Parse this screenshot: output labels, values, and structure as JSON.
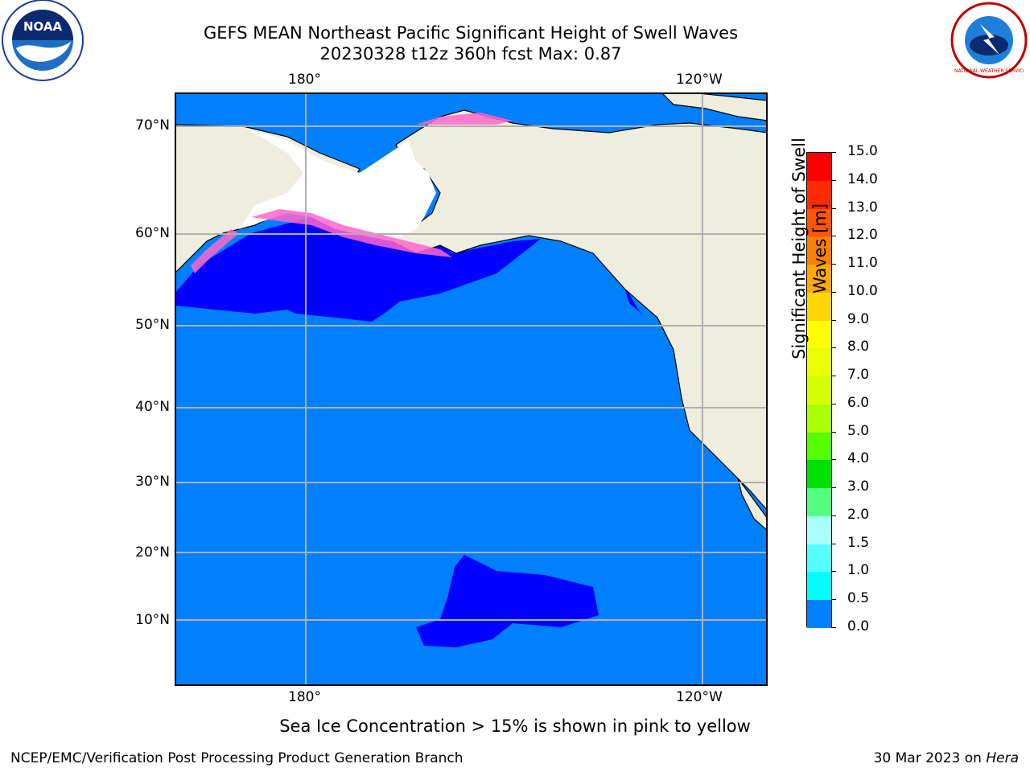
{
  "header": {
    "title_line1": "GEFS MEAN Northeast Pacific Significant Height of Swell Waves",
    "title_line2": "20230328 t12z 360h fcst   Max: 0.87"
  },
  "logos": {
    "left_text": "NOAA",
    "right_text": "NATIONAL WEATHER SERVICE"
  },
  "map": {
    "lon_labels": [
      "180°",
      "120°W"
    ],
    "lat_labels": [
      "70°N",
      "60°N",
      "50°N",
      "40°N",
      "30°N",
      "20°N",
      "10°N"
    ],
    "colors": {
      "land": "#eeedde",
      "ocean": "#0080ff",
      "low_swell": "#0000ff",
      "ice_free": "#ffffff",
      "grid": "#b0b0b0"
    }
  },
  "colorbar": {
    "label": "Significant Height of Swell Waves [m]",
    "ticks": [
      "15.0",
      "14.0",
      "13.0",
      "12.0",
      "11.0",
      "10.0",
      "9.0",
      "8.0",
      "7.0",
      "6.0",
      "5.0",
      "4.0",
      "3.0",
      "2.0",
      "1.5",
      "1.0",
      "0.5",
      "0.0"
    ],
    "colors": [
      "#ff0000",
      "#ff2a00",
      "#ff5500",
      "#ff8000",
      "#ffaa00",
      "#ffd500",
      "#ffff00",
      "#eaff00",
      "#d5ff00",
      "#aaff00",
      "#55ff00",
      "#00e000",
      "#55ff80",
      "#aaffff",
      "#55ffff",
      "#00ffff",
      "#0080ff",
      "#0000ff"
    ]
  },
  "caption": "Sea Ice Concentration > 15% is shown in pink to yellow",
  "footer": {
    "left": "NCEP/EMC/Verification Post Processing Product Generation Branch",
    "right_prefix": "30 Mar 2023 on ",
    "right_host": "Hera"
  }
}
